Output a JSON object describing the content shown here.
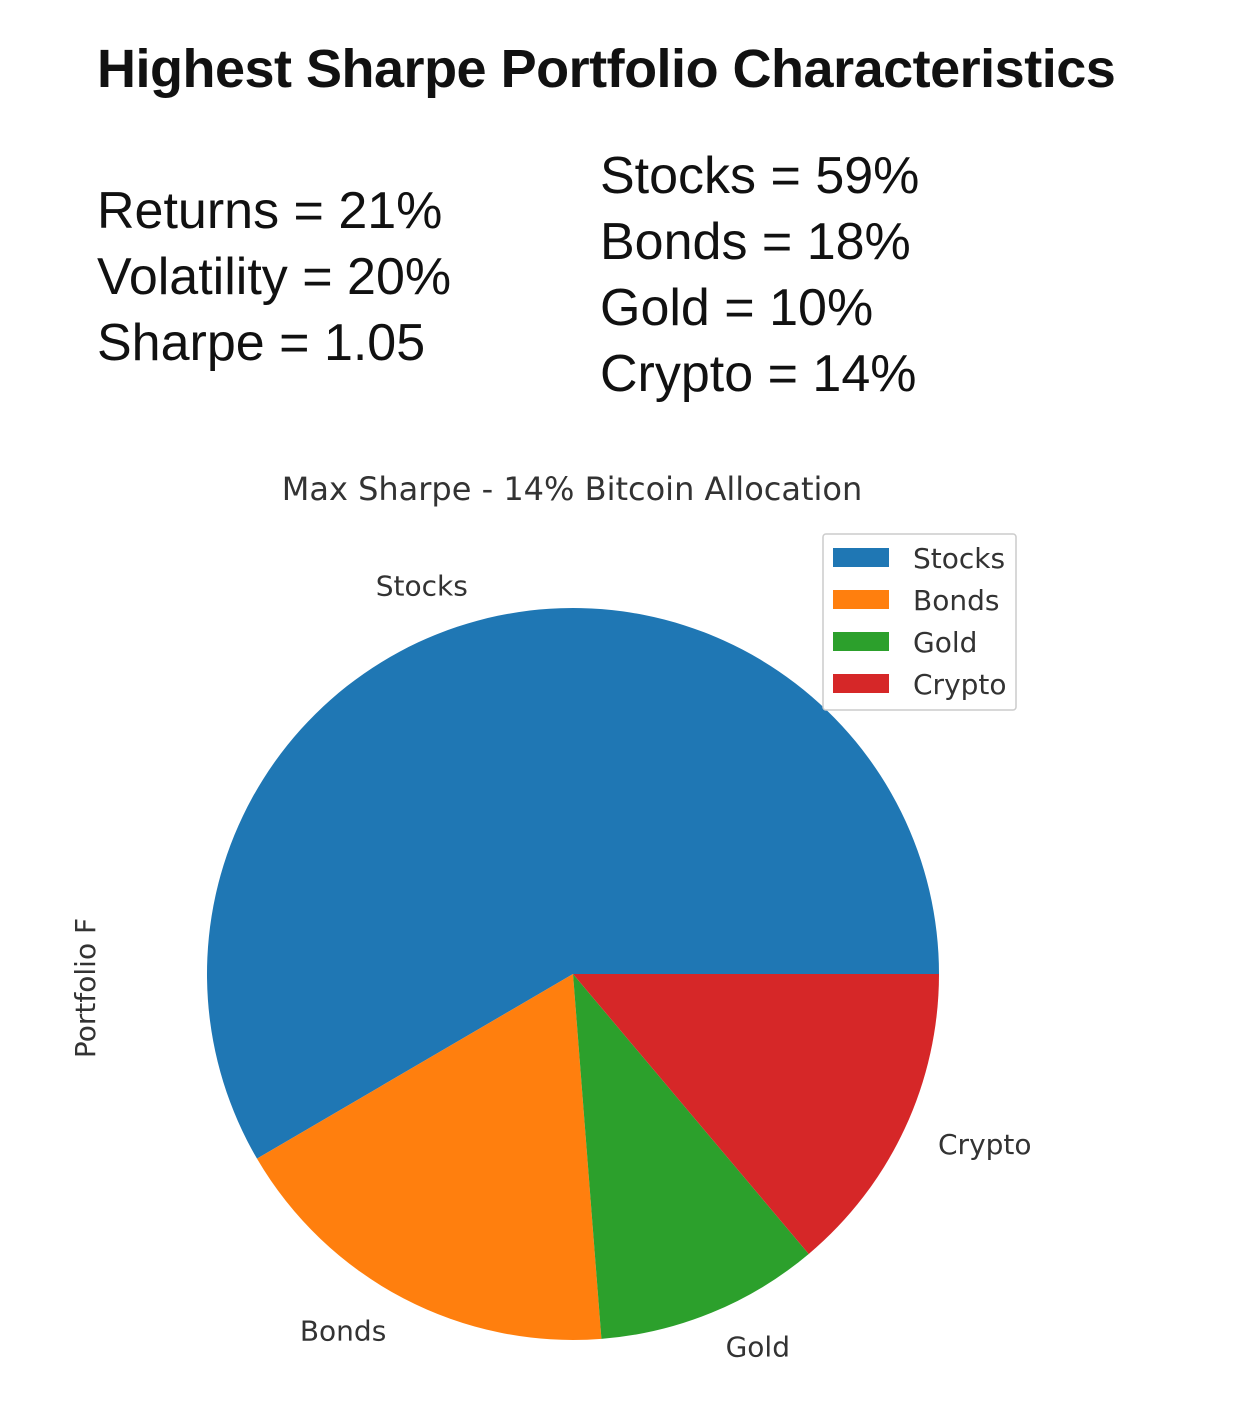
{
  "header": {
    "title": "Highest Sharpe Portfolio Characteristics"
  },
  "metrics": [
    "Returns = 21%",
    "Volatility = 20%",
    "Sharpe = 1.05"
  ],
  "allocation_text": [
    "Stocks = 59%",
    "Bonds = 18%",
    "Gold = 10%",
    "Crypto = 14%"
  ],
  "chart_data": {
    "type": "pie",
    "title": "Max Sharpe - 14% Bitcoin Allocation",
    "ylabel": "Portfolio F",
    "xlabel": "",
    "categories": [
      "Stocks",
      "Bonds",
      "Gold",
      "Crypto"
    ],
    "values": [
      59,
      18,
      10,
      14
    ],
    "colors": [
      "#1f77b4",
      "#ff7f0e",
      "#2ca02c",
      "#d62728"
    ],
    "start_angle_deg": 0,
    "direction": "counterclockwise",
    "legend": {
      "position": "upper-right",
      "entries": [
        "Stocks",
        "Bonds",
        "Gold",
        "Crypto"
      ]
    }
  }
}
